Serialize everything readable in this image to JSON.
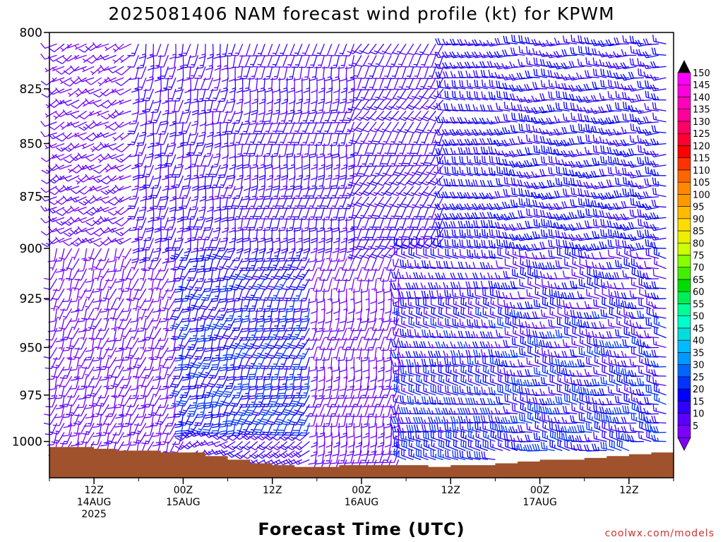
{
  "chart_data": {
    "type": "wind-barb-profile",
    "title": "2025081406 NAM forecast wind profile (kt) for KPWM",
    "xlabel": "Forecast Time (UTC)",
    "credit": "coolwx.com/models",
    "units": "kt",
    "y_axis": {
      "quantity": "pressure (hPa)",
      "ylim": [
        800,
        1020
      ],
      "inverted": true,
      "ticks": [
        800,
        825,
        850,
        875,
        900,
        925,
        950,
        975,
        1000
      ]
    },
    "x_axis": {
      "start": "2025-08-14T06:00Z",
      "end": "2025-08-17T18:00Z",
      "ticks": [
        {
          "time": "2025-08-14T12:00Z",
          "lines": [
            "12Z",
            "14AUG",
            "2025"
          ]
        },
        {
          "time": "2025-08-15T00:00Z",
          "lines": [
            "00Z",
            "15AUG"
          ]
        },
        {
          "time": "2025-08-15T12:00Z",
          "lines": [
            "12Z"
          ]
        },
        {
          "time": "2025-08-16T00:00Z",
          "lines": [
            "00Z",
            "16AUG"
          ]
        },
        {
          "time": "2025-08-16T12:00Z",
          "lines": [
            "12Z"
          ]
        },
        {
          "time": "2025-08-17T00:00Z",
          "lines": [
            "00Z",
            "17AUG"
          ]
        },
        {
          "time": "2025-08-17T12:00Z",
          "lines": [
            "12Z"
          ]
        }
      ]
    },
    "colorbar": {
      "levels": [
        5,
        10,
        15,
        20,
        25,
        30,
        35,
        40,
        45,
        50,
        55,
        60,
        65,
        70,
        75,
        80,
        85,
        90,
        95,
        100,
        105,
        110,
        115,
        120,
        125,
        130,
        135,
        140,
        145,
        150
      ],
      "colors": [
        "#7d00ff",
        "#5a00ff",
        "#2f00ff",
        "#0000ff",
        "#0033ff",
        "#0066ff",
        "#0099ff",
        "#00bbff",
        "#00dddd",
        "#00ffcc",
        "#00ff99",
        "#00ee55",
        "#00dd00",
        "#44ee00",
        "#88ff00",
        "#ccff00",
        "#eeee00",
        "#ffdd00",
        "#ffbb00",
        "#ff9900",
        "#ff8800",
        "#ff6600",
        "#ff3300",
        "#ff0000",
        "#ff0033",
        "#ff0066",
        "#ff0099",
        "#ff00bb",
        "#ff00dd",
        "#ff00ff"
      ],
      "under_color": "#7d00ff",
      "over_color": "#000000"
    },
    "barb_grid": {
      "pressure_step_hpa": 5,
      "time_step_hours": 1
    },
    "terrain": {
      "color": "#a0522d",
      "surface_pressure": [
        [
          "2025-08-14T06:00Z",
          1003
        ],
        [
          "2025-08-14T09:00Z",
          1003
        ],
        [
          "2025-08-14T12:00Z",
          1004
        ],
        [
          "2025-08-14T15:00Z",
          1005
        ],
        [
          "2025-08-14T18:00Z",
          1005
        ],
        [
          "2025-08-14T21:00Z",
          1006
        ],
        [
          "2025-08-15T00:00Z",
          1006
        ],
        [
          "2025-08-15T03:00Z",
          1008
        ],
        [
          "2025-08-15T06:00Z",
          1010
        ],
        [
          "2025-08-15T09:00Z",
          1012
        ],
        [
          "2025-08-15T12:00Z",
          1013
        ],
        [
          "2025-08-15T15:00Z",
          1014
        ],
        [
          "2025-08-15T18:00Z",
          1014
        ],
        [
          "2025-08-15T21:00Z",
          1013
        ],
        [
          "2025-08-16T00:00Z",
          1013
        ],
        [
          "2025-08-16T03:00Z",
          1013
        ],
        [
          "2025-08-16T06:00Z",
          1013
        ],
        [
          "2025-08-16T09:00Z",
          1014
        ],
        [
          "2025-08-16T12:00Z",
          1013
        ],
        [
          "2025-08-16T15:00Z",
          1013
        ],
        [
          "2025-08-16T18:00Z",
          1012
        ],
        [
          "2025-08-16T21:00Z",
          1011
        ],
        [
          "2025-08-17T00:00Z",
          1010
        ],
        [
          "2025-08-17T03:00Z",
          1010
        ],
        [
          "2025-08-17T06:00Z",
          1009
        ],
        [
          "2025-08-17T09:00Z",
          1008
        ],
        [
          "2025-08-17T12:00Z",
          1007
        ],
        [
          "2025-08-17T15:00Z",
          1006
        ],
        [
          "2025-08-17T18:00Z",
          1006
        ]
      ]
    },
    "wind_regimes": [
      {
        "times": [
          "2025-08-14T06:00Z",
          "2025-08-14T18:00Z"
        ],
        "pressure_hpa": [
          800,
          900
        ],
        "direction_deg": 240,
        "speed_kt": [
          5,
          15
        ]
      },
      {
        "times": [
          "2025-08-14T06:00Z",
          "2025-08-15T00:00Z"
        ],
        "pressure_hpa": [
          900,
          1005
        ],
        "direction_deg": 200,
        "speed_kt": [
          5,
          15
        ]
      },
      {
        "times": [
          "2025-08-14T18:00Z",
          "2025-08-16T00:00Z"
        ],
        "pressure_hpa": [
          800,
          900
        ],
        "direction_deg": 190,
        "speed_kt": [
          10,
          20
        ]
      },
      {
        "times": [
          "2025-08-15T00:00Z",
          "2025-08-15T18:00Z"
        ],
        "pressure_hpa": [
          900,
          990
        ],
        "direction_deg": 200,
        "speed_kt": [
          15,
          30
        ]
      },
      {
        "times": [
          "2025-08-15T18:00Z",
          "2025-08-16T06:00Z"
        ],
        "pressure_hpa": [
          900,
          1010
        ],
        "direction_deg": 190,
        "speed_kt": [
          5,
          15
        ]
      },
      {
        "times": [
          "2025-08-16T00:00Z",
          "2025-08-16T12:00Z"
        ],
        "pressure_hpa": [
          800,
          900
        ],
        "direction_deg": 210,
        "speed_kt": [
          10,
          20
        ]
      },
      {
        "times": [
          "2025-08-16T06:00Z",
          "2025-08-17T18:00Z"
        ],
        "pressure_hpa": [
          900,
          1010
        ],
        "direction_deg": 280,
        "speed_kt": [
          10,
          30
        ]
      },
      {
        "times": [
          "2025-08-16T12:00Z",
          "2025-08-17T18:00Z"
        ],
        "pressure_hpa": [
          800,
          900
        ],
        "direction_deg": 270,
        "speed_kt": [
          15,
          25
        ]
      }
    ]
  }
}
